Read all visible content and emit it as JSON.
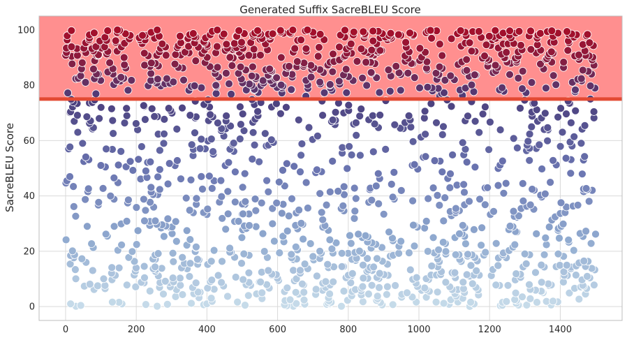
{
  "chart_data": {
    "type": "scatter",
    "title": "Generated Suffix SacreBLEU Score",
    "xlabel": "",
    "ylabel": "SacreBLEU Score",
    "xlim": [
      -75,
      1575
    ],
    "ylim": [
      -5,
      105
    ],
    "xticks": [
      0,
      200,
      400,
      600,
      800,
      1000,
      1200,
      1400
    ],
    "yticks": [
      0,
      20,
      40,
      60,
      80,
      100
    ],
    "grid": true,
    "legend": "none",
    "n_points": 1500,
    "threshold": {
      "value": 75,
      "color": "#e34a33"
    },
    "highlight_band": {
      "y_from": 75,
      "y_to": 105,
      "color": "#ff8f8f"
    },
    "color_scale": [
      {
        "y": 0,
        "color": "#c7dcea"
      },
      {
        "y": 25,
        "color": "#8fa9cf"
      },
      {
        "y": 50,
        "color": "#6a74b0"
      },
      {
        "y": 75,
        "color": "#4b3f7d"
      },
      {
        "y": 90,
        "color": "#8c1a3c"
      },
      {
        "y": 100,
        "color": "#a50f2a"
      }
    ],
    "value_distribution": {
      "x_range": [
        0,
        1500
      ],
      "groups": [
        {
          "y_range": [
            0,
            20
          ],
          "share": 0.28
        },
        {
          "y_range": [
            20,
            50
          ],
          "share": 0.22
        },
        {
          "y_range": [
            50,
            75
          ],
          "share": 0.17
        },
        {
          "y_range": [
            75,
            100
          ],
          "share": 0.33
        }
      ]
    }
  }
}
